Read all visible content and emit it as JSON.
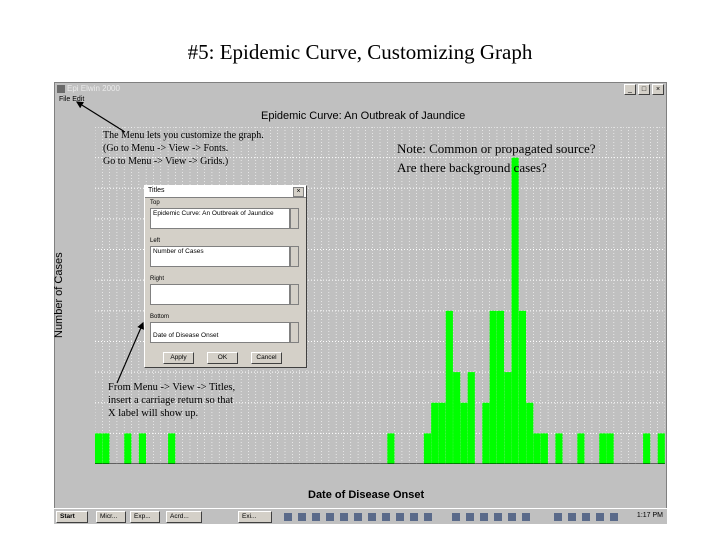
{
  "slide": {
    "title": "#5: Epidemic Curve, Customizing Graph"
  },
  "window": {
    "title": "Epi Elwin 2000",
    "menu": "File Edit",
    "controls": [
      "_",
      "□",
      "×"
    ]
  },
  "annotations": {
    "menu_note": [
      "The Menu lets you customize the graph.",
      "(Go to Menu -> View -> Fonts.",
      "Go to Menu -> View -> Grids.)"
    ],
    "note": [
      "Note: Common or propagated source?",
      "Are there background cases?"
    ],
    "titles_note": [
      "From Menu -> View -> Titles,",
      "insert a carriage return so that",
      "X label will show up."
    ]
  },
  "dialog": {
    "title": "Titles",
    "close": "×",
    "fields": [
      {
        "label": "Top",
        "value": "Epidemic Curve: An Outbreak of Jaundice"
      },
      {
        "label": "Left",
        "value": "Number of Cases"
      },
      {
        "label": "Right",
        "value": ""
      },
      {
        "label": "Bottom",
        "value": "Date of Disease Onset"
      }
    ],
    "buttons": [
      "Apply",
      "OK",
      "Cancel"
    ]
  },
  "taskbar": {
    "start": "Start",
    "tasks": [
      "Micr...",
      "Exp...",
      "Acrd...",
      "Exi..."
    ],
    "clock": "1:17 PM"
  },
  "colors": {
    "bar": "#00ff00",
    "background": "#c0c0c0",
    "grid": "#ffffff"
  },
  "chart_data": {
    "type": "bar",
    "title": "Epidemic Curve: An Outbreak of Jaundice",
    "xlabel": "Date of Disease Onset",
    "ylabel": "Number of Cases",
    "ylim": [
      0,
      11
    ],
    "grid": true,
    "y_ticks": [
      1,
      2,
      3,
      4,
      5,
      6,
      7,
      8,
      9,
      10,
      11
    ],
    "values": [
      1,
      1,
      0,
      0,
      1,
      0,
      1,
      0,
      0,
      0,
      1,
      0,
      0,
      0,
      0,
      0,
      0,
      0,
      0,
      0,
      0,
      0,
      0,
      0,
      0,
      0,
      0,
      0,
      0,
      0,
      0,
      0,
      0,
      0,
      0,
      0,
      0,
      0,
      0,
      0,
      1,
      0,
      0,
      0,
      0,
      1,
      2,
      2,
      5,
      3,
      2,
      3,
      0,
      2,
      5,
      5,
      3,
      10,
      5,
      2,
      1,
      1,
      0,
      1,
      0,
      0,
      1,
      0,
      0,
      1,
      1,
      0,
      0,
      0,
      0,
      1,
      0,
      1
    ]
  }
}
